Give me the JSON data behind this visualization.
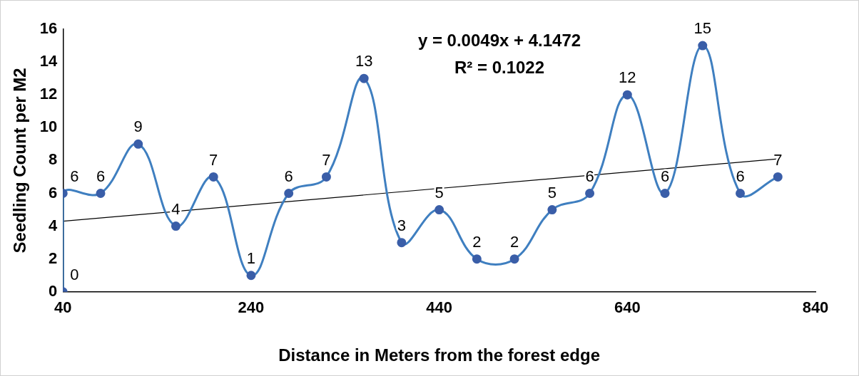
{
  "chart_data": {
    "type": "line",
    "xlabel": "Distance in Meters from the forest edge",
    "ylabel": "Seedling Count per M2",
    "xlim": [
      40,
      840
    ],
    "xticks": [
      40,
      240,
      440,
      640,
      840
    ],
    "ylim": [
      0,
      16
    ],
    "yticks": [
      0,
      2,
      4,
      6,
      8,
      10,
      12,
      14,
      16
    ],
    "grid": false,
    "legend": false,
    "marker": "circle",
    "line_style": "solid",
    "annotations": [
      "y = 0.0049x + 4.1472",
      "R² = 0.1022"
    ],
    "series": [
      {
        "color": "#3f7fc0",
        "x": [
          40,
          40,
          80,
          120,
          160,
          200,
          240,
          280,
          320,
          360,
          400,
          440,
          480,
          520,
          560,
          600,
          640,
          680,
          720,
          760,
          800
        ],
        "values": [
          0,
          6,
          6,
          9,
          4,
          7,
          1,
          6,
          7,
          13,
          3,
          5,
          2,
          2,
          5,
          6,
          12,
          6,
          15,
          6,
          7
        ],
        "value_labels": [
          "0",
          "6",
          "6",
          "9",
          "4",
          "7",
          "1",
          "6",
          "7",
          "13",
          "3",
          "5",
          "2",
          "2",
          "5",
          "6",
          "12",
          "6",
          "15",
          "6",
          "7"
        ]
      },
      {
        "color": "#000000",
        "marker": "none",
        "x": [
          40,
          800
        ],
        "values": [
          4.3,
          8.1
        ]
      }
    ]
  }
}
